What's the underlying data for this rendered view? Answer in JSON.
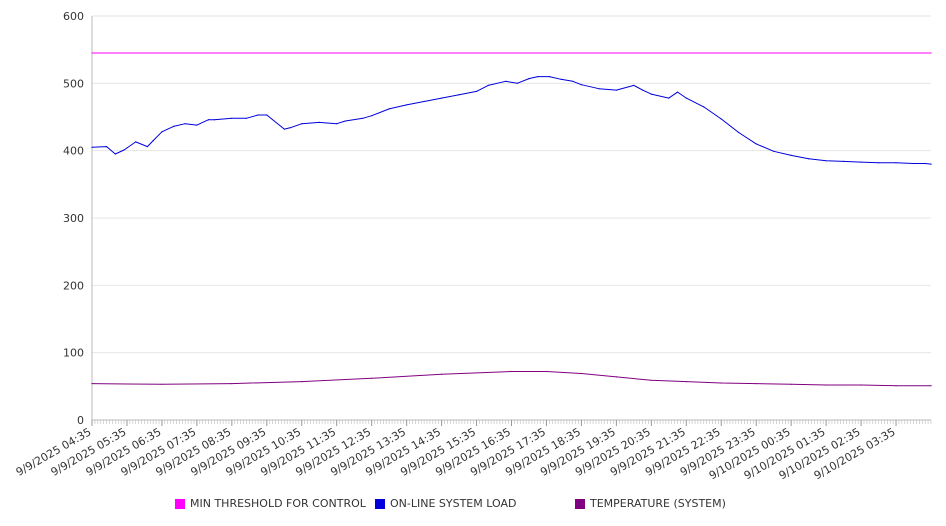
{
  "chart_data": {
    "type": "line",
    "title": "",
    "xlabel": "",
    "ylabel": "",
    "ylim": [
      0,
      600
    ],
    "yticks": [
      0,
      100,
      200,
      300,
      400,
      500,
      600
    ],
    "xticks": [
      "9/9/2025 04:35",
      "9/9/2025 05:35",
      "9/9/2025 06:35",
      "9/9/2025 07:35",
      "9/9/2025 08:35",
      "9/9/2025 09:35",
      "9/9/2025 10:35",
      "9/9/2025 11:35",
      "9/9/2025 12:35",
      "9/9/2025 13:35",
      "9/9/2025 14:35",
      "9/9/2025 15:35",
      "9/9/2025 16:35",
      "9/9/2025 17:35",
      "9/9/2025 18:35",
      "9/9/2025 19:35",
      "9/9/2025 20:35",
      "9/9/2025 21:35",
      "9/9/2025 22:35",
      "9/9/2025 23:35",
      "9/10/2025 00:35",
      "9/10/2025 01:35",
      "9/10/2025 02:35",
      "9/10/2025 03:35"
    ],
    "xlim": [
      "9/9/2025 04:35",
      "9/10/2025 04:35"
    ],
    "grid": true,
    "legend_position": "bottom",
    "series": [
      {
        "name": "MIN THRESHOLD FOR CONTROL",
        "color": "#ff00ff",
        "x": [
          "9/9/2025 04:35",
          "9/10/2025 04:35"
        ],
        "values": [
          545,
          545
        ]
      },
      {
        "name": "ON-LINE SYSTEM LOAD",
        "color": "#0000dd",
        "x": [
          "9/9/2025 04:35",
          "9/9/2025 05:00",
          "9/9/2025 05:15",
          "9/9/2025 05:30",
          "9/9/2025 05:50",
          "9/9/2025 06:10",
          "9/9/2025 06:20",
          "9/9/2025 06:35",
          "9/9/2025 06:55",
          "9/9/2025 07:15",
          "9/9/2025 07:35",
          "9/9/2025 07:55",
          "9/9/2025 08:05",
          "9/9/2025 08:35",
          "9/9/2025 09:00",
          "9/9/2025 09:20",
          "9/9/2025 09:35",
          "9/9/2025 10:05",
          "9/9/2025 10:15",
          "9/9/2025 10:35",
          "9/9/2025 11:05",
          "9/9/2025 11:35",
          "9/9/2025 11:50",
          "9/9/2025 12:20",
          "9/9/2025 12:35",
          "9/9/2025 13:05",
          "9/9/2025 13:35",
          "9/9/2025 14:05",
          "9/9/2025 14:35",
          "9/9/2025 15:05",
          "9/9/2025 15:35",
          "9/9/2025 15:55",
          "9/9/2025 16:25",
          "9/9/2025 16:45",
          "9/9/2025 17:05",
          "9/9/2025 17:20",
          "9/9/2025 17:40",
          "9/9/2025 18:00",
          "9/9/2025 18:20",
          "9/9/2025 18:35",
          "9/9/2025 19:05",
          "9/9/2025 19:35",
          "9/9/2025 20:05",
          "9/9/2025 20:20",
          "9/9/2025 20:35",
          "9/9/2025 21:05",
          "9/9/2025 21:20",
          "9/9/2025 21:35",
          "9/9/2025 22:05",
          "9/9/2025 22:35",
          "9/9/2025 23:05",
          "9/9/2025 23:35",
          "9/10/2025 00:05",
          "9/10/2025 00:35",
          "9/10/2025 01:05",
          "9/10/2025 01:35",
          "9/10/2025 02:05",
          "9/10/2025 02:35",
          "9/10/2025 03:05",
          "9/10/2025 03:35",
          "9/10/2025 04:05",
          "9/10/2025 04:25",
          "9/10/2025 04:35"
        ],
        "values": [
          405,
          406,
          395,
          401,
          413,
          406,
          415,
          428,
          436,
          440,
          438,
          446,
          446,
          448,
          448,
          453,
          453,
          432,
          434,
          440,
          442,
          440,
          444,
          448,
          452,
          462,
          468,
          473,
          478,
          483,
          488,
          497,
          503,
          500,
          507,
          510,
          510,
          506,
          503,
          498,
          492,
          490,
          497,
          490,
          484,
          478,
          487,
          478,
          465,
          447,
          427,
          410,
          399,
          393,
          388,
          385,
          384,
          383,
          382,
          382,
          381,
          381,
          380
        ]
      },
      {
        "name": "TEMPERATURE (SYSTEM)",
        "color": "#800080",
        "x": [
          "9/9/2025 04:35",
          "9/9/2025 06:35",
          "9/9/2025 08:35",
          "9/9/2025 10:35",
          "9/9/2025 12:35",
          "9/9/2025 14:35",
          "9/9/2025 16:35",
          "9/9/2025 17:35",
          "9/9/2025 18:35",
          "9/9/2025 19:35",
          "9/9/2025 20:35",
          "9/9/2025 21:35",
          "9/9/2025 22:35",
          "9/9/2025 23:35",
          "9/10/2025 00:35",
          "9/10/2025 01:35",
          "9/10/2025 02:35",
          "9/10/2025 03:35",
          "9/10/2025 04:35"
        ],
        "values": [
          54,
          53,
          54,
          57,
          62,
          68,
          72,
          72,
          69,
          64,
          59,
          57,
          55,
          54,
          53,
          52,
          52,
          51,
          51
        ]
      }
    ]
  }
}
